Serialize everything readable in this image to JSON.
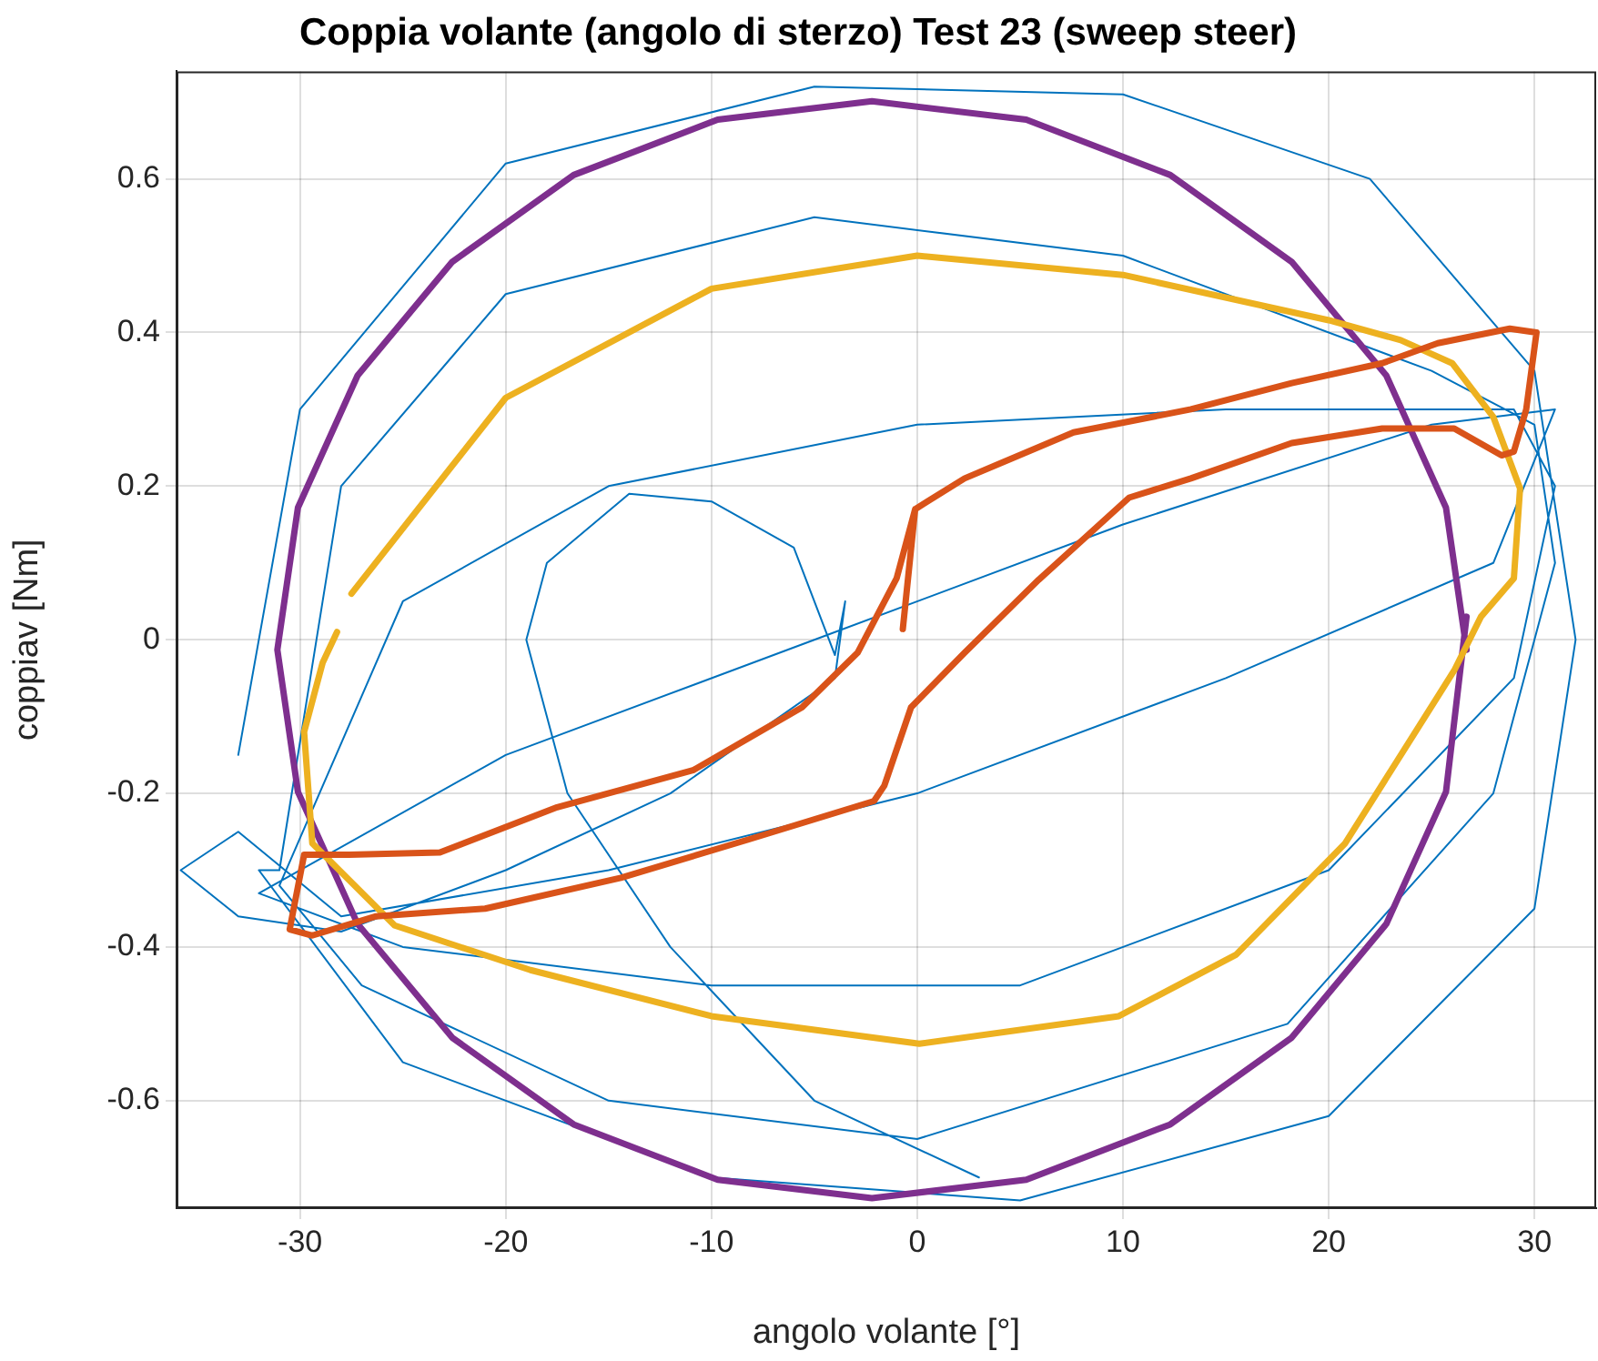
{
  "chart_data": {
    "type": "line",
    "title": "Coppia volante (angolo di sterzo) Test 23 (sweep steer)",
    "xlabel": "angolo volante [°]",
    "ylabel": "coppiav [Nm]",
    "xlim": [
      -36,
      33
    ],
    "xticks": [
      -30,
      -20,
      -10,
      0,
      10,
      20,
      30
    ],
    "ylim": [
      -0.74,
      0.74
    ],
    "yticks": [
      -0.6,
      -0.4,
      -0.2,
      0,
      0.2,
      0.4,
      0.6
    ],
    "grid": true,
    "legend": false,
    "marker": "none",
    "line_style": "solid",
    "series": [
      {
        "color": "#0072bd",
        "x": [
          -33,
          -30,
          -20,
          -5,
          10,
          22,
          30,
          32,
          30,
          20,
          5,
          -10,
          -25,
          -32,
          -31,
          -28,
          -20,
          -5,
          10,
          25,
          30,
          31,
          28,
          18,
          0,
          -15,
          -27,
          -31,
          -25,
          -15,
          0,
          15,
          29,
          31,
          29,
          20,
          5,
          -10,
          -25,
          -32,
          -20,
          -5,
          10,
          25,
          31,
          28,
          15,
          0,
          -15,
          -28,
          -33,
          -35.8,
          -33,
          -28,
          -20,
          -12,
          -4,
          -3.5,
          -4,
          -6,
          -10,
          -14,
          -18,
          -19,
          -17,
          -12,
          -5,
          3
        ],
        "values": [
          -0.15,
          0.3,
          0.62,
          0.72,
          0.71,
          0.6,
          0.35,
          0,
          -0.35,
          -0.62,
          -0.73,
          -0.7,
          -0.55,
          -0.3,
          -0.3,
          0.2,
          0.45,
          0.55,
          0.5,
          0.35,
          0.28,
          0.1,
          -0.2,
          -0.5,
          -0.65,
          -0.6,
          -0.45,
          -0.32,
          0.05,
          0.2,
          0.28,
          0.3,
          0.3,
          0.2,
          -0.05,
          -0.3,
          -0.45,
          -0.45,
          -0.4,
          -0.33,
          -0.15,
          0,
          0.15,
          0.28,
          0.3,
          0.1,
          -0.05,
          -0.2,
          -0.3,
          -0.36,
          -0.25,
          -0.3,
          -0.36,
          -0.38,
          -0.3,
          -0.2,
          -0.05,
          0.05,
          -0.02,
          0.12,
          0.18,
          0.19,
          0.1,
          0,
          -0.2,
          -0.4,
          -0.6,
          -0.7
        ]
      },
      {
        "color": "#7e2f8e",
        "x": [
          26.7,
          25.7,
          22.8,
          18.2,
          12.3,
          5.3,
          -2.2,
          -9.7,
          -16.7,
          -22.6,
          -27.2,
          -30.1,
          -31.1,
          -30.1,
          -27.2,
          -22.6,
          -16.7,
          -9.7,
          -2.2,
          5.3,
          12.3,
          18.2,
          22.8,
          25.7,
          26.7
        ],
        "values": [
          -0.013,
          0.172,
          0.344,
          0.492,
          0.605,
          0.677,
          0.701,
          0.677,
          0.605,
          0.492,
          0.344,
          0.172,
          -0.013,
          -0.198,
          -0.37,
          -0.518,
          -0.631,
          -0.703,
          -0.727,
          -0.703,
          -0.631,
          -0.518,
          -0.37,
          -0.198,
          0.03
        ]
      },
      {
        "color": "#edb120",
        "x": [
          -27.5,
          -20,
          -10,
          0,
          10,
          20,
          23.5,
          26,
          28,
          29.3,
          29,
          27.4,
          26.1,
          20.8,
          15.5,
          9.8,
          0.1,
          -10,
          -18.8,
          -25.4,
          -29.4,
          -29.8,
          -28.9,
          -28.2
        ],
        "values": [
          0.06,
          0.315,
          0.457,
          0.5,
          0.475,
          0.416,
          0.39,
          0.36,
          0.29,
          0.197,
          0.08,
          0.03,
          -0.04,
          -0.265,
          -0.41,
          -0.49,
          -0.526,
          -0.49,
          -0.43,
          -0.372,
          -0.265,
          -0.12,
          -0.03,
          0.01
        ]
      },
      {
        "color": "#d95319",
        "x": [
          -0.7,
          -0.1,
          2.3,
          7.6,
          13.3,
          18.2,
          22.6,
          25.3,
          28.8,
          30.1,
          29.6,
          29,
          28.4,
          26.1,
          22.6,
          18.2,
          13.3,
          10.3,
          5.9,
          2.3,
          -0.3,
          -1.6,
          -2.1,
          -8.2,
          -14.4,
          -21,
          -26.3,
          -29.4,
          -30.5,
          -29.8,
          -27.6,
          -23.2,
          -17.5,
          -10.9,
          -5.6,
          -2.9,
          -1,
          -0.1
        ],
        "values": [
          0.014,
          0.17,
          0.21,
          0.27,
          0.3,
          0.334,
          0.36,
          0.386,
          0.405,
          0.4,
          0.3,
          0.245,
          0.24,
          0.275,
          0.275,
          0.256,
          0.21,
          0.185,
          0.078,
          -0.017,
          -0.088,
          -0.19,
          -0.21,
          -0.26,
          -0.31,
          -0.35,
          -0.36,
          -0.385,
          -0.377,
          -0.28,
          -0.28,
          -0.277,
          -0.218,
          -0.17,
          -0.088,
          -0.017,
          0.08,
          0.17
        ]
      }
    ]
  }
}
